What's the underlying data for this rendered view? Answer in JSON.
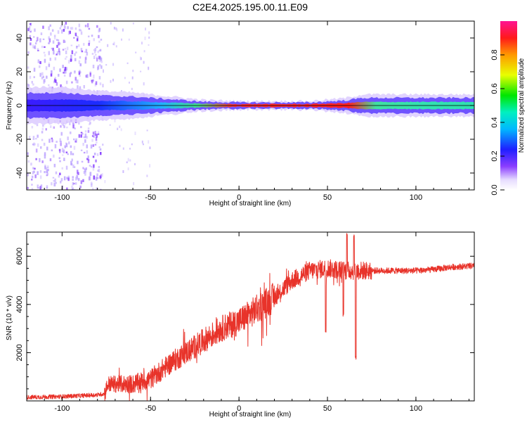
{
  "figure_title": "C2E4.2025.195.00.11.E09",
  "colors": {
    "snr_line": "#e8332a",
    "band_strong": "#ff2020",
    "band_mid": "#30e0a0",
    "band_weak": "#5a3cff",
    "speckle": "#b9a0ff"
  },
  "chart_data": [
    {
      "type": "heatmap",
      "title": "C2E4.2025.195.00.11.E09",
      "xlabel": "Height of straight line (km)",
      "ylabel": "Frequency (Hz)",
      "xlim": [
        -120,
        133
      ],
      "ylim": [
        -50,
        50
      ],
      "x_ticks": [
        -100,
        -50,
        0,
        50,
        100
      ],
      "x_tick_labels": [
        "-100",
        "-50",
        "0",
        "50",
        "100"
      ],
      "y_ticks": [
        -40,
        -20,
        0,
        20,
        40
      ],
      "y_tick_labels": [
        "-40",
        "-20",
        "0",
        "20",
        "40"
      ],
      "colorbar": {
        "label": "Normalized spectral amplitude",
        "range": [
          0,
          1
        ],
        "ticks": [
          0.0,
          0.2,
          0.4,
          0.6,
          0.8
        ],
        "tick_labels": [
          "0.0",
          "0.2",
          "0.4",
          "0.6",
          "0.8"
        ],
        "colormap": "rainbow (white-violet-blue-cyan-green-yellow-red-magenta)"
      },
      "band": {
        "center_freq_hz": 0,
        "profile": [
          {
            "x": -120,
            "half_width_hz": 5,
            "amplitude": 0.35
          },
          {
            "x": -100,
            "half_width_hz": 5,
            "amplitude": 0.4
          },
          {
            "x": -80,
            "half_width_hz": 4,
            "amplitude": 0.45
          },
          {
            "x": -60,
            "half_width_hz": 3.5,
            "amplitude": 0.55
          },
          {
            "x": -40,
            "half_width_hz": 2.5,
            "amplitude": 0.6
          },
          {
            "x": -30,
            "half_width_hz": 2,
            "amplitude": 0.75
          },
          {
            "x": -20,
            "half_width_hz": 1.5,
            "amplitude": 0.9
          },
          {
            "x": 0,
            "half_width_hz": 1.2,
            "amplitude": 1.0
          },
          {
            "x": 40,
            "half_width_hz": 1.2,
            "amplitude": 1.0
          },
          {
            "x": 60,
            "half_width_hz": 2,
            "amplitude": 0.85
          },
          {
            "x": 70,
            "half_width_hz": 3,
            "amplitude": 0.6
          },
          {
            "x": 100,
            "half_width_hz": 3,
            "amplitude": 0.65
          },
          {
            "x": 133,
            "half_width_hz": 3,
            "amplitude": 0.6
          }
        ],
        "noise_speckle_region_x": [
          -120,
          -78
        ],
        "sparse_speckle_region_x": [
          -78,
          -50
        ]
      }
    },
    {
      "type": "line",
      "xlabel": "Height of straight line (km)",
      "ylabel": "SNR (10 * v/v)",
      "xlim": [
        -120,
        133
      ],
      "ylim": [
        0,
        7000
      ],
      "x_ticks": [
        -100,
        -50,
        0,
        50,
        100
      ],
      "x_tick_labels": [
        "-100",
        "-50",
        "0",
        "50",
        "100"
      ],
      "y_ticks": [
        2000,
        4000,
        6000
      ],
      "y_tick_labels": [
        "2000",
        "4000",
        "6000"
      ],
      "series": [
        {
          "values_envelope": [
            {
              "x": -120,
              "y": 150
            },
            {
              "x": -100,
              "y": 180
            },
            {
              "x": -80,
              "y": 250
            },
            {
              "x": -76,
              "y": 300
            },
            {
              "x": -74,
              "y": 700
            },
            {
              "x": -60,
              "y": 700
            },
            {
              "x": -50,
              "y": 900
            },
            {
              "x": -40,
              "y": 1500
            },
            {
              "x": -30,
              "y": 2000
            },
            {
              "x": -20,
              "y": 2500
            },
            {
              "x": -10,
              "y": 3000
            },
            {
              "x": 0,
              "y": 3300
            },
            {
              "x": 10,
              "y": 3800
            },
            {
              "x": 20,
              "y": 4300
            },
            {
              "x": 30,
              "y": 5000
            },
            {
              "x": 40,
              "y": 5400
            },
            {
              "x": 50,
              "y": 5500
            },
            {
              "x": 60,
              "y": 5400
            },
            {
              "x": 70,
              "y": 5400
            },
            {
              "x": 80,
              "y": 5400
            },
            {
              "x": 90,
              "y": 5400
            },
            {
              "x": 100,
              "y": 5400
            },
            {
              "x": 110,
              "y": 5450
            },
            {
              "x": 120,
              "y": 5550
            },
            {
              "x": 133,
              "y": 5600
            }
          ],
          "notable_dips": [
            {
              "x": 49,
              "y": 2800
            },
            {
              "x": 59,
              "y": 3500
            },
            {
              "x": 66,
              "y": 1700
            }
          ],
          "notable_peaks": [
            {
              "x": 61,
              "y": 7000
            },
            {
              "x": 65,
              "y": 6900
            }
          ]
        }
      ]
    }
  ]
}
